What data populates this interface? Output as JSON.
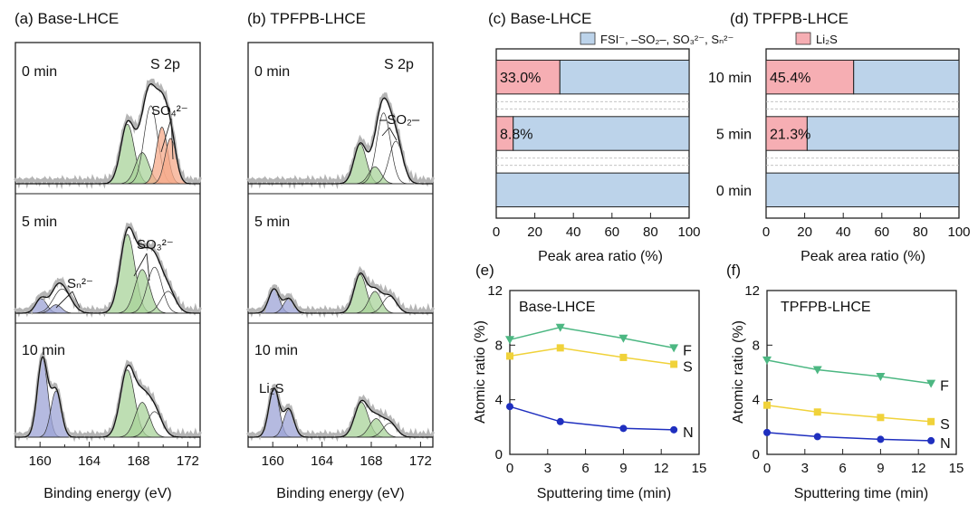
{
  "chart_data": [
    {
      "panel": "(a)",
      "title": "Base-LHCE",
      "type": "line",
      "xlabel": "Binding energy (eV)",
      "xticks": [
        "160",
        "164",
        "168",
        "172"
      ],
      "xlim": [
        158,
        173
      ],
      "corner_label": "S 2p",
      "annotations": [
        "SO₄²⁻",
        "SO₃²⁻",
        "Sₙ²⁻"
      ],
      "subpanels": [
        {
          "label": "0 min",
          "peaks": [
            {
              "center": 167.1,
              "height": 0.42,
              "width": 0.55,
              "color": "#a8d39a"
            },
            {
              "center": 168.3,
              "height": 0.22,
              "width": 0.55,
              "color": "#a8d39a"
            },
            {
              "center": 169.0,
              "height": 0.55,
              "width": 0.55,
              "color": "none"
            },
            {
              "center": 169.9,
              "height": 0.4,
              "width": 0.45,
              "color": "#f6a98a"
            },
            {
              "center": 170.6,
              "height": 0.32,
              "width": 0.45,
              "color": "#f6a98a"
            }
          ]
        },
        {
          "label": "5 min",
          "peaks": [
            {
              "center": 160.1,
              "height": 0.12,
              "width": 0.45,
              "color": "#9ca3d6"
            },
            {
              "center": 161.3,
              "height": 0.07,
              "width": 0.45,
              "color": "#9ca3d6"
            },
            {
              "center": 161.8,
              "height": 0.2,
              "width": 0.7,
              "color": "none"
            },
            {
              "center": 167.1,
              "height": 0.65,
              "width": 0.6,
              "color": "#a8d39a"
            },
            {
              "center": 168.3,
              "height": 0.36,
              "width": 0.6,
              "color": "#a8d39a"
            },
            {
              "center": 169.3,
              "height": 0.38,
              "width": 0.6,
              "color": "none"
            },
            {
              "center": 170.4,
              "height": 0.18,
              "width": 0.6,
              "color": "none"
            }
          ]
        },
        {
          "label": "10 min",
          "peaks": [
            {
              "center": 160.2,
              "height": 0.68,
              "width": 0.42,
              "color": "#9ca3d6"
            },
            {
              "center": 161.3,
              "height": 0.4,
              "width": 0.42,
              "color": "#9ca3d6"
            },
            {
              "center": 167.1,
              "height": 0.58,
              "width": 0.58,
              "color": "#a8d39a"
            },
            {
              "center": 168.3,
              "height": 0.3,
              "width": 0.58,
              "color": "#a8d39a"
            },
            {
              "center": 169.3,
              "height": 0.22,
              "width": 0.6,
              "color": "none"
            }
          ]
        }
      ]
    },
    {
      "panel": "(b)",
      "title": "TPFPB-LHCE",
      "type": "line",
      "xlabel": "Binding energy (eV)",
      "xticks": [
        "160",
        "164",
        "168",
        "172"
      ],
      "xlim": [
        158,
        173
      ],
      "corner_label": "S 2p",
      "annotations": [
        "–SO₂–",
        "Li₂S"
      ],
      "subpanels": [
        {
          "label": "0 min",
          "peaks": [
            {
              "center": 167.1,
              "height": 0.28,
              "width": 0.5,
              "color": "#a8d39a"
            },
            {
              "center": 168.3,
              "height": 0.12,
              "width": 0.5,
              "color": "#a8d39a"
            },
            {
              "center": 169.0,
              "height": 0.5,
              "width": 0.55,
              "color": "none"
            },
            {
              "center": 170.0,
              "height": 0.3,
              "width": 0.55,
              "color": "none"
            }
          ]
        },
        {
          "label": "5 min",
          "peaks": [
            {
              "center": 160.1,
              "height": 0.2,
              "width": 0.42,
              "color": "#9ca3d6"
            },
            {
              "center": 161.3,
              "height": 0.12,
              "width": 0.42,
              "color": "#9ca3d6"
            },
            {
              "center": 167.1,
              "height": 0.32,
              "width": 0.5,
              "color": "#a8d39a"
            },
            {
              "center": 168.3,
              "height": 0.18,
              "width": 0.5,
              "color": "#a8d39a"
            },
            {
              "center": 169.5,
              "height": 0.14,
              "width": 0.55,
              "color": "none"
            }
          ]
        },
        {
          "label": "10 min",
          "peaks": [
            {
              "center": 160.1,
              "height": 0.42,
              "width": 0.42,
              "color": "#9ca3d6"
            },
            {
              "center": 161.3,
              "height": 0.24,
              "width": 0.42,
              "color": "#9ca3d6"
            },
            {
              "center": 167.2,
              "height": 0.3,
              "width": 0.55,
              "color": "#a8d39a"
            },
            {
              "center": 168.4,
              "height": 0.16,
              "width": 0.55,
              "color": "#a8d39a"
            },
            {
              "center": 169.5,
              "height": 0.12,
              "width": 0.55,
              "color": "none"
            }
          ]
        }
      ]
    },
    {
      "panel": "(c)",
      "title": "Base-LHCE",
      "type": "bar",
      "orientation": "horizontal",
      "categories": [
        "10 min",
        "5 min",
        "0 min"
      ],
      "series": [
        {
          "name": "Li₂S",
          "color": "#f6aeb3",
          "values": [
            33.0,
            8.8,
            0
          ]
        },
        {
          "name": "FSI⁻, –SO₂–, SO₃²⁻, Sₙ²⁻",
          "color": "#bcd3ea",
          "values": [
            67.0,
            91.2,
            100
          ]
        }
      ],
      "data_labels": [
        "33.0%",
        "8.8%",
        ""
      ],
      "xlabel": "Peak area ratio (%)",
      "xlim": [
        0,
        100
      ],
      "xticks": [
        "0",
        "20",
        "40",
        "60",
        "80",
        "100"
      ]
    },
    {
      "panel": "(d)",
      "title": "TPFPB-LHCE",
      "type": "bar",
      "orientation": "horizontal",
      "categories": [
        "10 min",
        "5 min",
        "0 min"
      ],
      "series": [
        {
          "name": "Li₂S",
          "color": "#f6aeb3",
          "values": [
            45.4,
            21.3,
            0
          ]
        },
        {
          "name": "FSI⁻, –SO₂–, SO₃²⁻, Sₙ²⁻",
          "color": "#bcd3ea",
          "values": [
            54.6,
            78.7,
            100
          ]
        }
      ],
      "data_labels": [
        "45.4%",
        "21.3%",
        ""
      ],
      "xlabel": "Peak area ratio (%)",
      "xlim": [
        0,
        100
      ],
      "xticks": [
        "0",
        "20",
        "40",
        "60",
        "80",
        "100"
      ]
    },
    {
      "panel": "(e)",
      "title": "Base-LHCE",
      "type": "line",
      "xlabel": "Sputtering time (min)",
      "ylabel": "Atomic ratio (%)",
      "xlim": [
        0,
        15
      ],
      "ylim": [
        0,
        12
      ],
      "xticks": [
        "0",
        "3",
        "6",
        "9",
        "12",
        "15"
      ],
      "yticks": [
        "0",
        "4",
        "8",
        "12"
      ],
      "x": [
        0,
        4,
        9,
        13
      ],
      "series": [
        {
          "name": "F",
          "color": "#4cb782",
          "marker": "triangle",
          "values": [
            8.4,
            9.3,
            8.5,
            7.8
          ]
        },
        {
          "name": "S",
          "color": "#f0d23a",
          "marker": "square",
          "values": [
            7.2,
            7.8,
            7.1,
            6.6
          ]
        },
        {
          "name": "N",
          "color": "#1f2fbf",
          "marker": "circle",
          "values": [
            3.5,
            2.4,
            1.9,
            1.8
          ]
        }
      ]
    },
    {
      "panel": "(f)",
      "title": "TPFPB-LHCE",
      "type": "line",
      "xlabel": "Sputtering time (min)",
      "ylabel": "Atomic ratio (%)",
      "xlim": [
        0,
        15
      ],
      "ylim": [
        0,
        12
      ],
      "xticks": [
        "0",
        "3",
        "6",
        "9",
        "12",
        "15"
      ],
      "yticks": [
        "0",
        "4",
        "8",
        "12"
      ],
      "x": [
        0,
        4,
        9,
        13
      ],
      "series": [
        {
          "name": "F",
          "color": "#4cb782",
          "marker": "triangle",
          "values": [
            6.9,
            6.2,
            5.7,
            5.2
          ]
        },
        {
          "name": "S",
          "color": "#f0d23a",
          "marker": "square",
          "values": [
            3.6,
            3.1,
            2.7,
            2.4
          ]
        },
        {
          "name": "N",
          "color": "#1f2fbf",
          "marker": "circle",
          "values": [
            1.6,
            1.3,
            1.1,
            1.0
          ]
        }
      ]
    }
  ]
}
